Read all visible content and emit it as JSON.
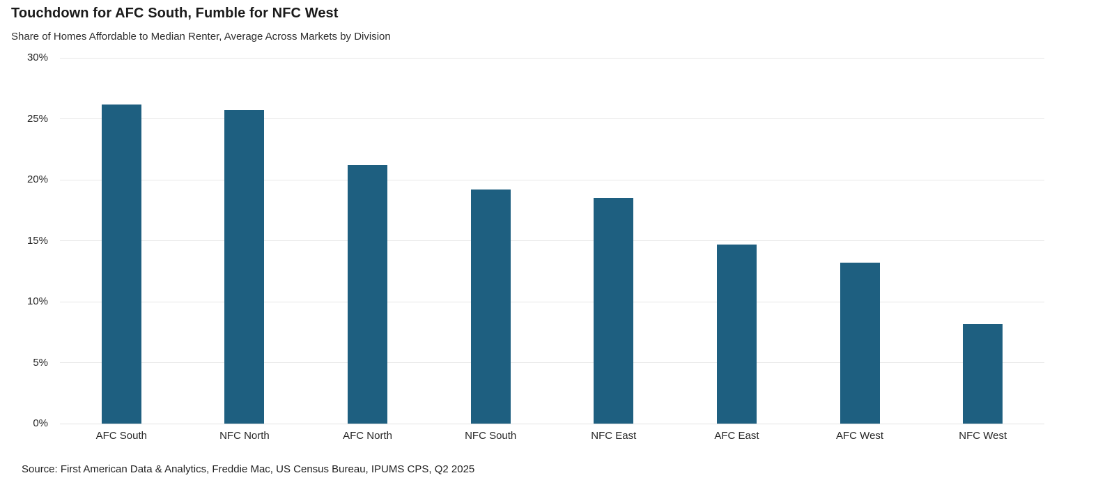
{
  "header": {
    "title": "Touchdown for AFC South, Fumble for NFC West",
    "subtitle": "Share of Homes Affordable to Median Renter, Average Across Markets by Division"
  },
  "chart_data": {
    "type": "bar",
    "title": "Touchdown for AFC South, Fumble for NFC West",
    "subtitle": "Share of Homes Affordable to Median Renter, Average Across Markets by Division",
    "categories": [
      "AFC South",
      "NFC North",
      "AFC North",
      "NFC South",
      "NFC East",
      "AFC East",
      "AFC West",
      "NFC West"
    ],
    "values": [
      26.2,
      25.7,
      21.2,
      19.2,
      18.5,
      14.7,
      13.2,
      8.2
    ],
    "xlabel": "",
    "ylabel": "",
    "ylim": [
      0,
      30
    ],
    "ytick_step": 5,
    "ytick_labels": [
      "0%",
      "5%",
      "10%",
      "15%",
      "20%",
      "25%",
      "30%"
    ],
    "grid": true,
    "legend_position": "none",
    "bar_color": "#1e5f80"
  },
  "footer": {
    "source": "Source: First American Data & Analytics, Freddie Mac, US Census Bureau, IPUMS CPS, Q2 2025"
  },
  "colors": {
    "bar": "#1e5f80",
    "gridline": "#e7e7e7",
    "axis_line": "#e2e2e2",
    "title_text": "#1a1a1a",
    "label_text": "#262626",
    "background": "#ffffff"
  }
}
